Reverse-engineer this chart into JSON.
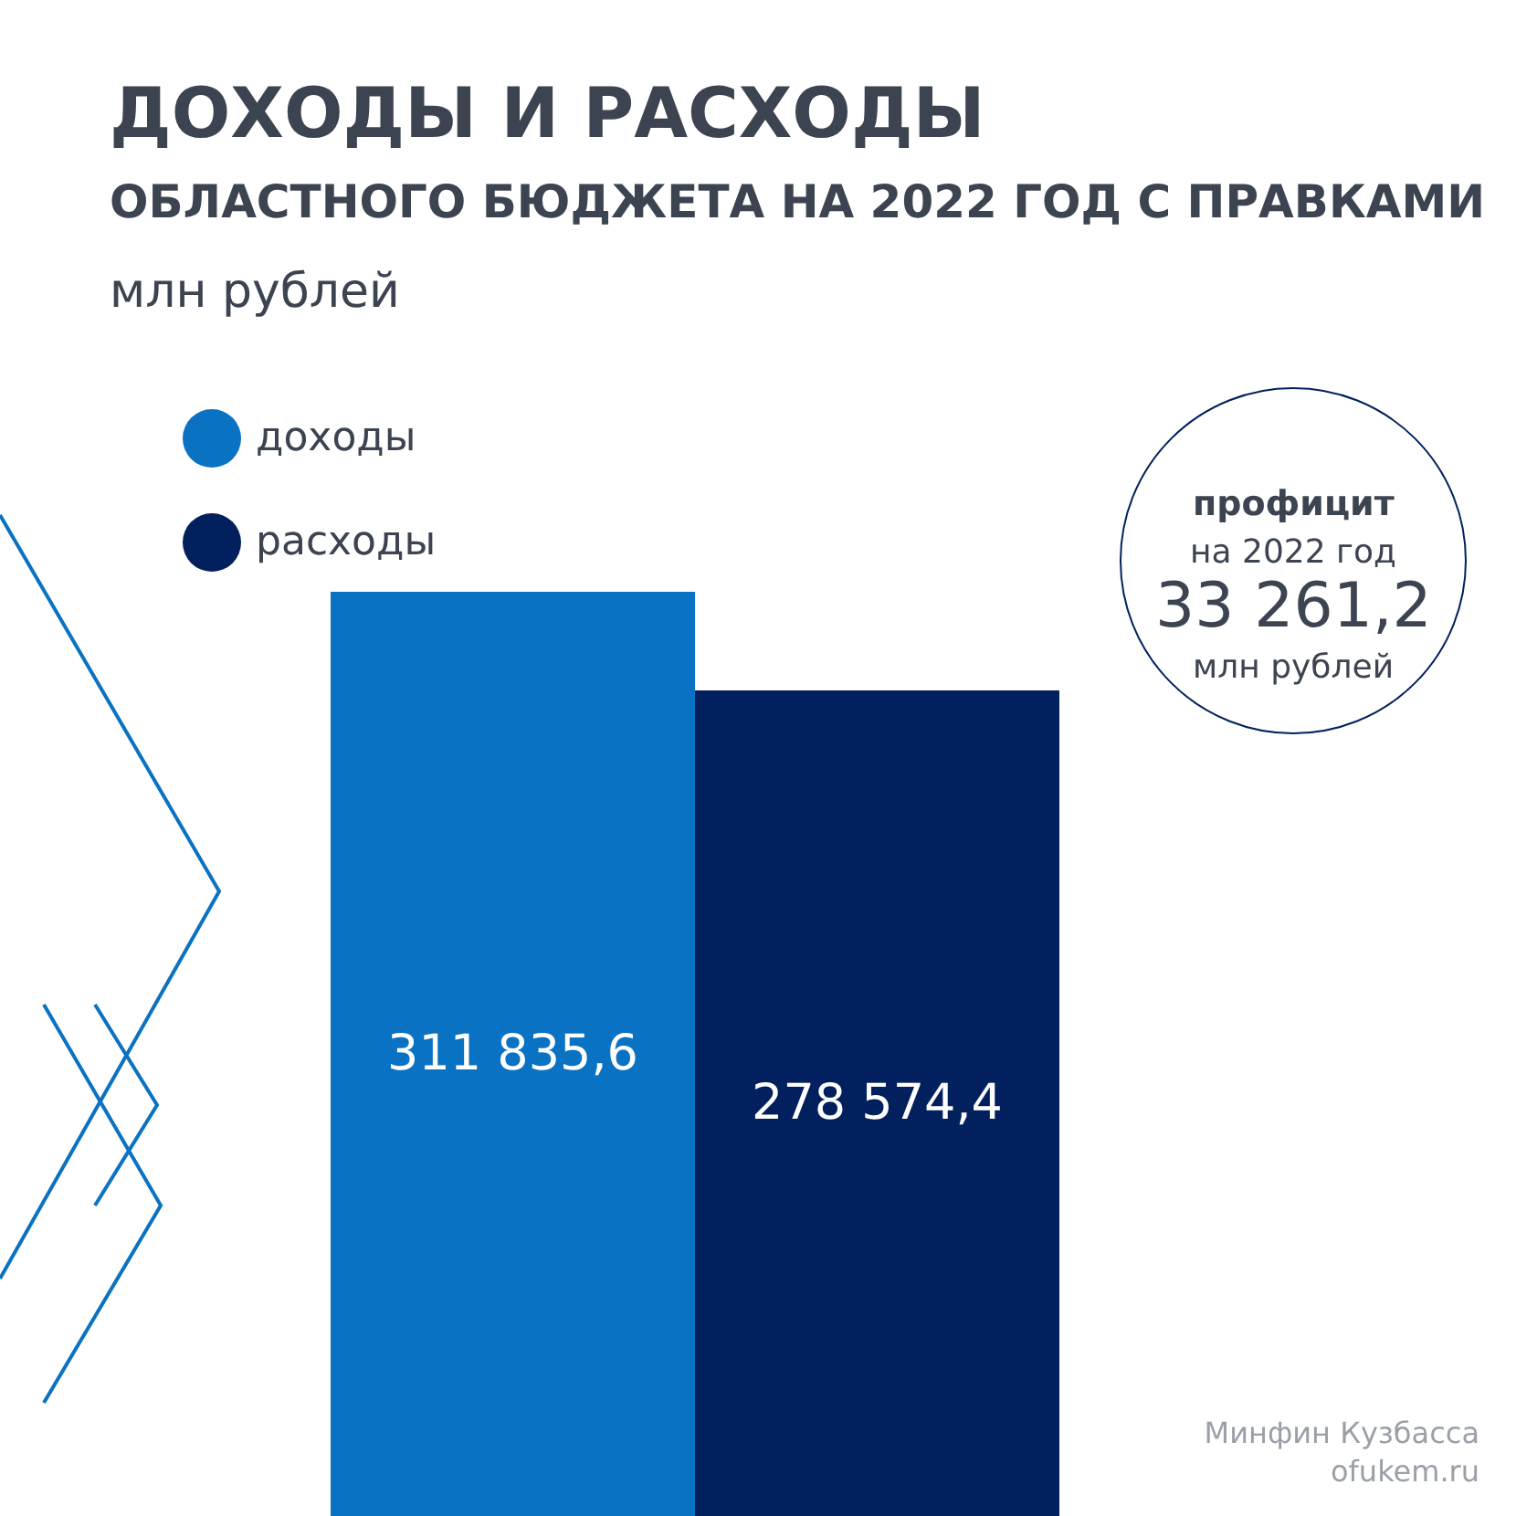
{
  "chart_data": {
    "type": "bar",
    "title": "ДОХОДЫ И РАСХОДЫ",
    "subtitle": "ОБЛАСТНОГО БЮДЖЕТА НА 2022 ГОД С ПРАВКАМИ",
    "categories": [
      null
    ],
    "series": [
      {
        "name": "доходы",
        "color": "#0a72c2",
        "values": [
          311835.6
        ],
        "value_labels": [
          "311 835,6"
        ]
      },
      {
        "name": "расходы",
        "color": "#03205e",
        "values": [
          278574.4
        ],
        "value_labels": [
          "278 574,4"
        ]
      }
    ],
    "legend": "top left",
    "annotations": [
      "млн рублей",
      "профицит",
      "на 2022 год",
      "33 261,2",
      "млн рублей",
      "Минфин Кузбасса",
      "ofukem.ru"
    ]
  }
}
